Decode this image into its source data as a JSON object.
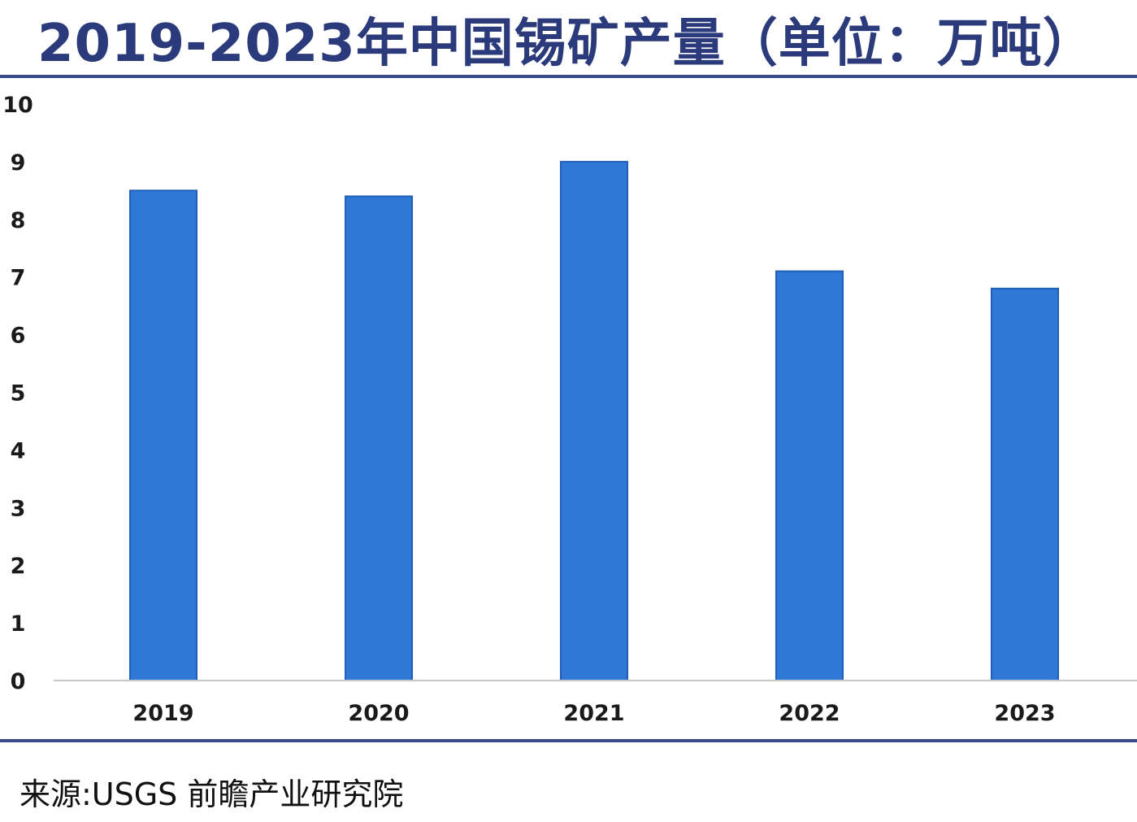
{
  "title": "2019-2023年中国锡矿产量（单位：万吨）",
  "source": "来源:USGS 前瞻产业研究院",
  "colors": {
    "bar": "#2f78d6",
    "bar_edge": "#1f5fb8",
    "rule": "#3b4a8a",
    "title": "#2b3a7a"
  },
  "chart_data": {
    "type": "bar",
    "title": "2019-2023年中国锡矿产量（单位：万吨）",
    "xlabel": "",
    "ylabel": "",
    "unit": "万吨",
    "categories": [
      "2019",
      "2020",
      "2021",
      "2022",
      "2023"
    ],
    "values": [
      8.5,
      8.4,
      9.0,
      7.1,
      6.8
    ],
    "ylim": [
      0,
      10
    ],
    "yticks": [
      "0",
      "1",
      "2",
      "3",
      "4",
      "5",
      "6",
      "7",
      "8",
      "9",
      "10"
    ],
    "grid": false,
    "legend": "none"
  }
}
